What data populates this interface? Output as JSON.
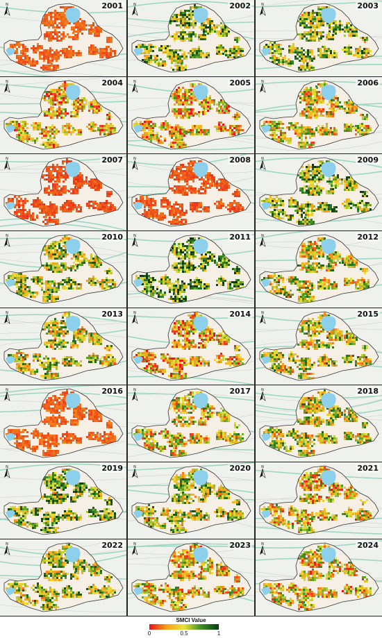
{
  "panels": [
    {
      "year": "2001",
      "state": 0.08
    },
    {
      "year": "2002",
      "state": 0.62
    },
    {
      "year": "2003",
      "state": 0.58
    },
    {
      "year": "2004",
      "state": 0.36
    },
    {
      "year": "2005",
      "state": 0.35
    },
    {
      "year": "2006",
      "state": 0.45
    },
    {
      "year": "2007",
      "state": 0.05
    },
    {
      "year": "2008",
      "state": 0.06
    },
    {
      "year": "2009",
      "state": 0.62
    },
    {
      "year": "2010",
      "state": 0.55
    },
    {
      "year": "2011",
      "state": 0.7
    },
    {
      "year": "2012",
      "state": 0.5
    },
    {
      "year": "2013",
      "state": 0.5
    },
    {
      "year": "2014",
      "state": 0.35
    },
    {
      "year": "2015",
      "state": 0.5
    },
    {
      "year": "2016",
      "state": 0.08
    },
    {
      "year": "2017",
      "state": 0.45
    },
    {
      "year": "2018",
      "state": 0.5
    },
    {
      "year": "2019",
      "state": 0.6
    },
    {
      "year": "2020",
      "state": 0.55
    },
    {
      "year": "2021",
      "state": 0.4
    },
    {
      "year": "2022",
      "state": 0.55
    },
    {
      "year": "2023",
      "state": 0.42
    },
    {
      "year": "2024",
      "state": 0.4
    }
  ],
  "legend": {
    "title": "SMCI Value",
    "ticks": [
      {
        "label": "0",
        "value": 0
      },
      {
        "label": "0.5",
        "value": 0.5
      },
      {
        "label": "1",
        "value": 1
      }
    ],
    "colors": [
      "#e8121b",
      "#f4a21c",
      "#e8e23a",
      "#3c8f24",
      "#0c3a14"
    ]
  },
  "map_colors": {
    "basemap": "#eef1ec",
    "river": "#9fd6c3",
    "lake": "#8cd0ec",
    "region_outline": "#333333"
  }
}
